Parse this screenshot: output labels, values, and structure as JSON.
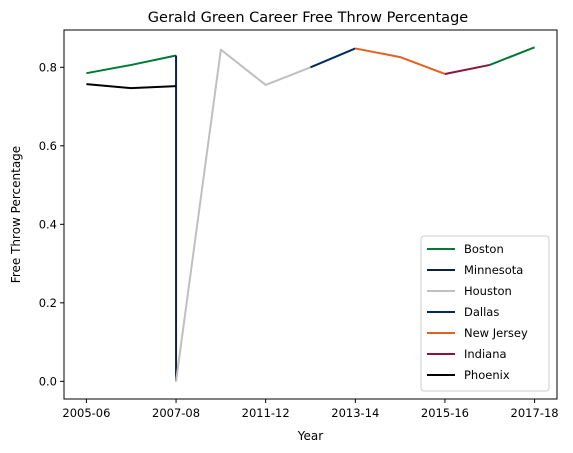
{
  "chart_data": {
    "type": "line",
    "title": "Gerald Green Career Free Throw Percentage",
    "xlabel": "Year",
    "ylabel": "Free Throw Percentage",
    "x_tick_labels": [
      "2005-06",
      "2007-08",
      "2011-12",
      "2013-14",
      "2015-16",
      "2017-18"
    ],
    "x_tick_positions": [
      0,
      2,
      4,
      6,
      8,
      10
    ],
    "xlim": [
      -0.5,
      10.5
    ],
    "ylim": [
      -0.045,
      0.895
    ],
    "y_ticks": [
      0.0,
      0.2,
      0.4,
      0.6,
      0.8
    ],
    "y_tick_labels": [
      "0.0",
      "0.2",
      "0.4",
      "0.6",
      "0.8"
    ],
    "grid": false,
    "legend_position": "bottom-right",
    "series": [
      {
        "name": "Boston",
        "color": "#007a33",
        "points": [
          [
            0,
            0.785
          ],
          [
            1,
            0.806
          ],
          [
            2,
            0.83
          ]
        ]
      },
      {
        "name": "Minnesota",
        "color": "#0c2340",
        "points": [
          [
            2,
            0.83
          ],
          [
            2,
            0.0
          ]
        ]
      },
      {
        "name": "Houston",
        "color": "#bfbfbf",
        "points": [
          [
            2,
            0.0
          ],
          [
            3,
            0.845
          ],
          [
            4,
            0.755
          ],
          [
            5,
            0.8
          ]
        ]
      },
      {
        "name": "Dallas",
        "color": "#002b5e",
        "points": [
          [
            5,
            0.8
          ],
          [
            6,
            0.848
          ]
        ]
      },
      {
        "name": "New Jersey",
        "color": "#e56020",
        "points": [
          [
            6,
            0.848
          ],
          [
            7,
            0.826
          ],
          [
            8,
            0.783
          ]
        ]
      },
      {
        "name": "Indiana",
        "color": "#8a1538",
        "points": [
          [
            8,
            0.783
          ],
          [
            9,
            0.806
          ]
        ]
      },
      {
        "name": "Boston",
        "color": "#007a33",
        "legend": false,
        "points": [
          [
            9,
            0.806
          ],
          [
            10,
            0.851
          ]
        ]
      },
      {
        "name": "Phoenix",
        "color": "#000000",
        "points": [
          [
            0,
            0.757
          ],
          [
            1,
            0.747
          ],
          [
            2,
            0.752
          ]
        ]
      }
    ]
  }
}
